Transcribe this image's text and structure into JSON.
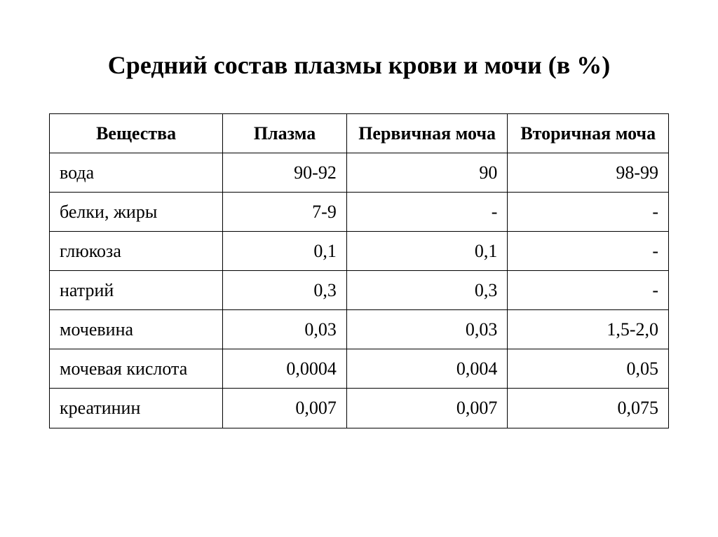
{
  "title": "Средний состав плазмы крови и мочи (в %)",
  "table": {
    "columns": [
      "Вещества",
      "Плазма",
      "Первичная моча",
      "Вторичная моча"
    ],
    "column_widths_pct": [
      28,
      20,
      26,
      26
    ],
    "header_align": "center",
    "label_align": "left",
    "value_align": "right",
    "border_color": "#000000",
    "background_color": "#ffffff",
    "text_color": "#000000",
    "header_fontsize": 26,
    "cell_fontsize": 26,
    "header_fontweight": "bold",
    "rows": [
      {
        "label": "вода",
        "plasma": "90-92",
        "primary": "90",
        "secondary": "98-99"
      },
      {
        "label": "белки, жиры",
        "plasma": "7-9",
        "primary": "-",
        "secondary": "-"
      },
      {
        "label": "глюкоза",
        "plasma": "0,1",
        "primary": "0,1",
        "secondary": "-"
      },
      {
        "label": "натрий",
        "plasma": "0,3",
        "primary": "0,3",
        "secondary": "-"
      },
      {
        "label": "мочевина",
        "plasma": "0,03",
        "primary": "0,03",
        "secondary": "1,5-2,0"
      },
      {
        "label": "мочевая кислота",
        "plasma": "0,0004",
        "primary": "0,004",
        "secondary": "0,05"
      },
      {
        "label": "креатинин",
        "plasma": "0,007",
        "primary": "0,007",
        "secondary": "0,075"
      }
    ]
  },
  "title_fontsize": 36,
  "title_fontweight": "bold"
}
